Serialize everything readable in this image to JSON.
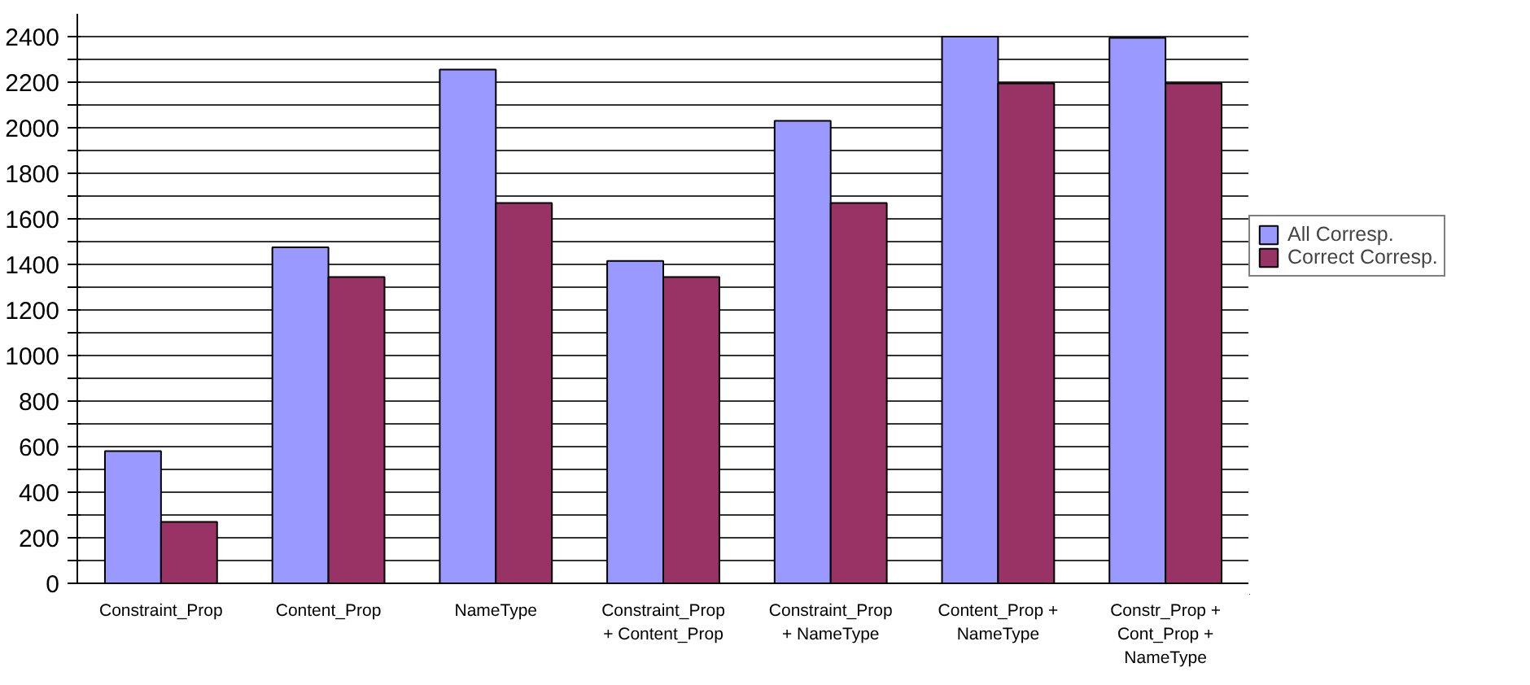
{
  "chart_data": {
    "type": "bar",
    "categories": [
      "Constraint_Prop",
      "Content_Prop",
      "NameType",
      "Constraint_Prop\n+ Content_Prop",
      "Constraint_Prop\n+ NameType",
      "Content_Prop +\nNameType",
      "Constr_Prop +\nCont_Prop +\nNameType"
    ],
    "series": [
      {
        "name": "All Corresp.",
        "color": "#9999ff",
        "values": [
          580,
          1475,
          2255,
          1415,
          2030,
          2400,
          2395
        ]
      },
      {
        "name": "Correct Corresp.",
        "color": "#993366",
        "values": [
          270,
          1345,
          1670,
          1345,
          1670,
          2195,
          2195
        ]
      }
    ],
    "ylim": [
      0,
      2500
    ],
    "yticks": [
      0,
      {
        "value": 100,
        "label": null
      },
      200,
      {
        "value": 300,
        "label": null
      },
      400,
      {
        "value": 500,
        "label": null
      },
      600,
      {
        "value": 700,
        "label": null
      },
      800,
      {
        "value": 900,
        "label": null
      },
      1000,
      {
        "value": 1100,
        "label": null
      },
      1200,
      {
        "value": 1300,
        "label": null
      },
      1400,
      {
        "value": 1500,
        "label": null
      },
      1600,
      {
        "value": 1700,
        "label": null
      },
      1800,
      {
        "value": 1900,
        "label": null
      },
      2000,
      {
        "value": 2100,
        "label": null
      },
      2200,
      {
        "value": 2300,
        "label": null
      },
      2400
    ],
    "grid": "y",
    "legend": "right"
  }
}
